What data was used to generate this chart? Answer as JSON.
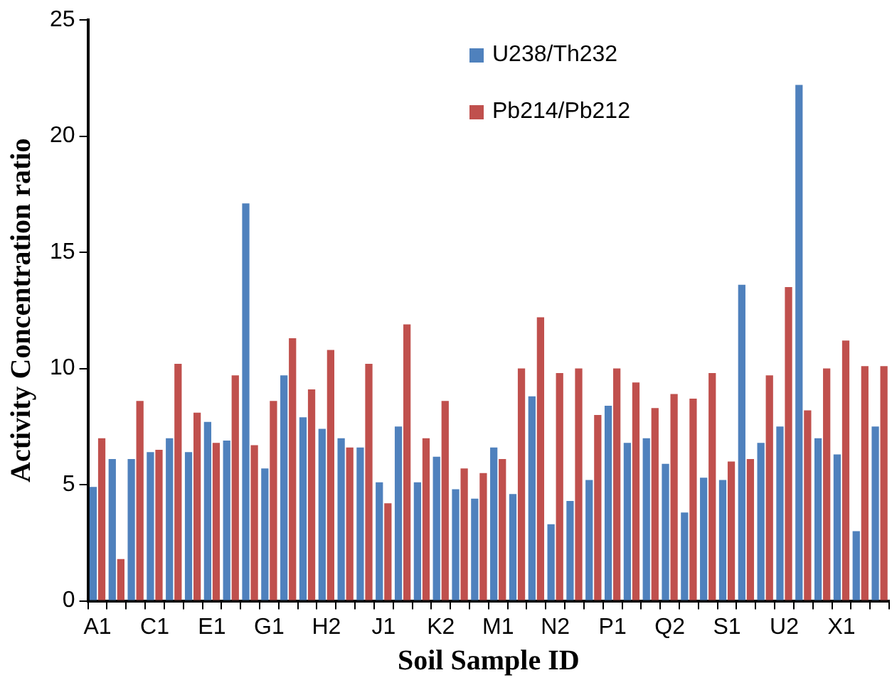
{
  "chart_data": {
    "type": "bar",
    "xlabel": "Soil Sample ID",
    "ylabel": "Activity Concentration ratio",
    "categories": [
      "A1",
      null,
      null,
      "C1",
      null,
      null,
      "E1",
      null,
      null,
      "G1",
      null,
      null,
      "H2",
      null,
      null,
      "J1",
      null,
      null,
      "K2",
      null,
      null,
      "M1",
      null,
      null,
      "N2",
      null,
      null,
      "P1",
      null,
      null,
      "Q2",
      null,
      null,
      "S1",
      null,
      null,
      "U2",
      null,
      null,
      "X1",
      null,
      null
    ],
    "series": [
      {
        "name": "U238/Th232",
        "color": "#4f81bd",
        "values": [
          4.9,
          6.1,
          6.1,
          6.4,
          7.0,
          6.4,
          7.7,
          6.9,
          17.1,
          5.7,
          9.7,
          7.9,
          7.4,
          7.0,
          6.6,
          5.1,
          7.5,
          5.1,
          6.2,
          4.8,
          4.4,
          6.6,
          4.6,
          8.8,
          3.3,
          4.3,
          5.2,
          8.4,
          6.8,
          7.0,
          5.9,
          3.8,
          5.3,
          5.2,
          13.6,
          6.8,
          7.5,
          22.2,
          7.0,
          6.3,
          3.0,
          7.5
        ]
      },
      {
        "name": "Pb214/Pb212",
        "color": "#c0504d",
        "values": [
          7.0,
          1.8,
          8.6,
          6.5,
          10.2,
          8.1,
          6.8,
          9.7,
          6.7,
          8.6,
          11.3,
          9.1,
          10.8,
          6.6,
          10.2,
          4.2,
          11.9,
          7.0,
          8.6,
          5.7,
          5.5,
          6.1,
          10.0,
          12.2,
          9.8,
          10.0,
          8.0,
          10.0,
          9.4,
          8.3,
          8.9,
          8.7,
          9.8,
          6.0,
          6.1,
          9.7,
          13.5,
          8.2,
          10.0,
          11.2,
          10.1,
          10.1
        ]
      }
    ],
    "ylim": [
      0,
      25
    ],
    "yticks": [
      0,
      5,
      10,
      15,
      20,
      25
    ],
    "grid": false,
    "legend": "top"
  }
}
